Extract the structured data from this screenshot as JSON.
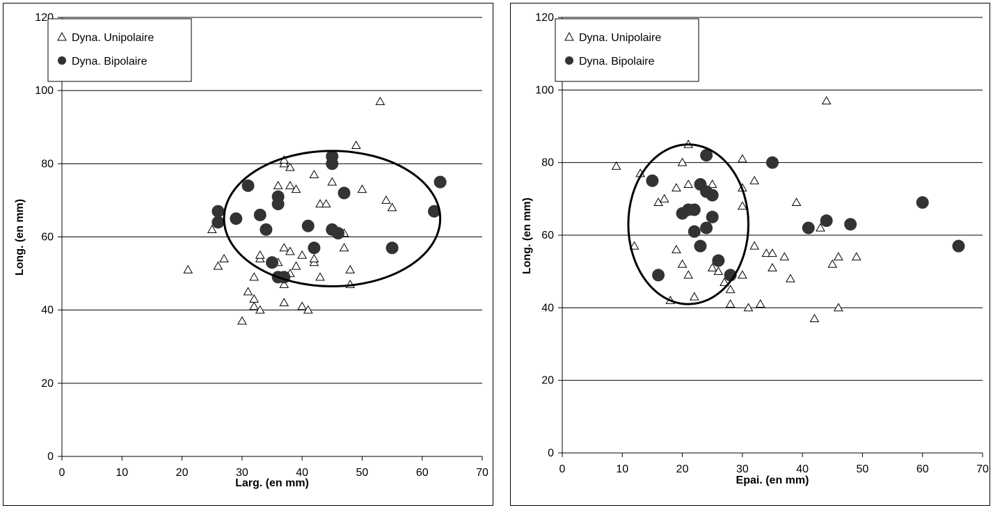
{
  "chart_data": [
    {
      "type": "scatter",
      "xlabel": "Larg. (en mm)",
      "ylabel": "Long. (en mm)",
      "xlim": [
        0,
        70
      ],
      "ylim": [
        0,
        120
      ],
      "xticks": [
        0,
        10,
        20,
        30,
        40,
        50,
        60,
        70
      ],
      "yticks": [
        0,
        20,
        40,
        60,
        80,
        100,
        120
      ],
      "grid": "horizontal",
      "legend_position": "top-left",
      "series": [
        {
          "name": "Dyna. Unipolaire",
          "marker": "open-triangle",
          "points": [
            [
              21,
              51
            ],
            [
              25,
              62
            ],
            [
              26,
              52
            ],
            [
              27,
              54
            ],
            [
              30,
              37
            ],
            [
              31,
              45
            ],
            [
              32,
              41
            ],
            [
              32,
              43
            ],
            [
              32,
              49
            ],
            [
              33,
              40
            ],
            [
              33,
              54
            ],
            [
              33,
              55
            ],
            [
              36,
              49
            ],
            [
              36,
              53
            ],
            [
              36,
              74
            ],
            [
              37,
              42
            ],
            [
              37,
              47
            ],
            [
              37,
              57
            ],
            [
              37,
              80
            ],
            [
              37,
              81
            ],
            [
              38,
              50
            ],
            [
              38,
              56
            ],
            [
              38,
              74
            ],
            [
              38,
              79
            ],
            [
              39,
              52
            ],
            [
              39,
              73
            ],
            [
              40,
              41
            ],
            [
              40,
              55
            ],
            [
              41,
              40
            ],
            [
              42,
              53
            ],
            [
              42,
              54
            ],
            [
              42,
              77
            ],
            [
              43,
              49
            ],
            [
              43,
              69
            ],
            [
              44,
              69
            ],
            [
              45,
              75
            ],
            [
              47,
              57
            ],
            [
              47,
              61
            ],
            [
              48,
              47
            ],
            [
              48,
              51
            ],
            [
              49,
              85
            ],
            [
              50,
              73
            ],
            [
              53,
              97
            ],
            [
              54,
              70
            ],
            [
              55,
              68
            ]
          ]
        },
        {
          "name": "Dyna. Bipolaire",
          "marker": "filled-circle",
          "points": [
            [
              26,
              64
            ],
            [
              26,
              67
            ],
            [
              29,
              65
            ],
            [
              31,
              74
            ],
            [
              33,
              66
            ],
            [
              34,
              62
            ],
            [
              35,
              53
            ],
            [
              36,
              49
            ],
            [
              36,
              69
            ],
            [
              36,
              71
            ],
            [
              37,
              49
            ],
            [
              41,
              63
            ],
            [
              42,
              57
            ],
            [
              45,
              62
            ],
            [
              45,
              80
            ],
            [
              45,
              82
            ],
            [
              46,
              61
            ],
            [
              47,
              72
            ],
            [
              55,
              57
            ],
            [
              62,
              67
            ],
            [
              63,
              75
            ]
          ]
        }
      ],
      "annotation_ellipse": {
        "center": [
          45,
          65
        ],
        "radius_x": 18,
        "radius_y": 18.5
      }
    },
    {
      "type": "scatter",
      "xlabel": "Epai. (en mm)",
      "ylabel": "Long. (en mm)",
      "xlim": [
        0,
        70
      ],
      "ylim": [
        0,
        120
      ],
      "xticks": [
        0,
        10,
        20,
        30,
        40,
        50,
        60,
        70
      ],
      "yticks": [
        0,
        20,
        40,
        60,
        80,
        100,
        120
      ],
      "grid": "horizontal",
      "legend_position": "top-left",
      "series": [
        {
          "name": "Dyna. Unipolaire",
          "marker": "open-triangle",
          "points": [
            [
              9,
              79
            ],
            [
              12,
              57
            ],
            [
              13,
              77
            ],
            [
              16,
              69
            ],
            [
              17,
              70
            ],
            [
              18,
              42
            ],
            [
              19,
              56
            ],
            [
              19,
              73
            ],
            [
              20,
              52
            ],
            [
              20,
              80
            ],
            [
              21,
              49
            ],
            [
              21,
              74
            ],
            [
              21,
              85
            ],
            [
              22,
              43
            ],
            [
              24,
              62
            ],
            [
              25,
              51
            ],
            [
              25,
              74
            ],
            [
              26,
              50
            ],
            [
              27,
              47
            ],
            [
              28,
              41
            ],
            [
              28,
              45
            ],
            [
              30,
              49
            ],
            [
              30,
              68
            ],
            [
              30,
              73
            ],
            [
              30,
              81
            ],
            [
              31,
              40
            ],
            [
              32,
              57
            ],
            [
              32,
              75
            ],
            [
              33,
              41
            ],
            [
              34,
              55
            ],
            [
              35,
              51
            ],
            [
              35,
              55
            ],
            [
              37,
              54
            ],
            [
              38,
              48
            ],
            [
              39,
              69
            ],
            [
              42,
              37
            ],
            [
              43,
              62
            ],
            [
              44,
              97
            ],
            [
              45,
              52
            ],
            [
              46,
              40
            ],
            [
              46,
              54
            ],
            [
              49,
              54
            ]
          ]
        },
        {
          "name": "Dyna. Bipolaire",
          "marker": "filled-circle",
          "points": [
            [
              15,
              75
            ],
            [
              16,
              49
            ],
            [
              20,
              66
            ],
            [
              21,
              67
            ],
            [
              22,
              61
            ],
            [
              22,
              67
            ],
            [
              23,
              57
            ],
            [
              23,
              74
            ],
            [
              24,
              62
            ],
            [
              24,
              72
            ],
            [
              24,
              82
            ],
            [
              25,
              65
            ],
            [
              25,
              71
            ],
            [
              26,
              53
            ],
            [
              28,
              49
            ],
            [
              35,
              80
            ],
            [
              41,
              62
            ],
            [
              44,
              64
            ],
            [
              48,
              63
            ],
            [
              60,
              69
            ],
            [
              66,
              57
            ]
          ]
        }
      ],
      "annotation_ellipse": {
        "center": [
          21,
          63
        ],
        "radius_x": 10,
        "radius_y": 22
      }
    }
  ]
}
